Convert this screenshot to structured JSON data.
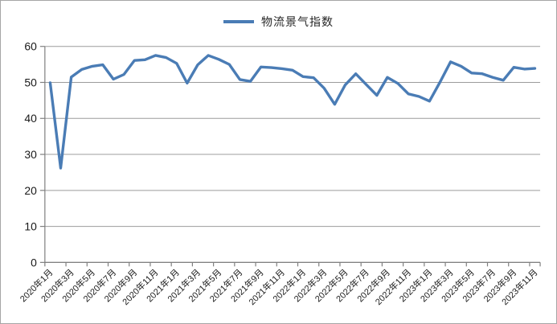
{
  "page": {
    "background": "#ffffff",
    "frame_border_color": "#a6a6a6"
  },
  "legend": {
    "position": "top-center",
    "marker": "line"
  },
  "colors": {
    "series_line": "#4a7cb5",
    "gridline": "#9c9c9c",
    "axis": "#7f7f7f",
    "tick_label": "#1a1a1a"
  },
  "chart_data": {
    "type": "line",
    "title": "",
    "xlabel": "",
    "ylabel": "",
    "ylim": [
      0,
      60
    ],
    "y_ticks": [
      0,
      10,
      20,
      30,
      40,
      50,
      60
    ],
    "grid": "horizontal",
    "legend_position": "top",
    "x_tick_label_interval": 2,
    "x": [
      "2020年1月",
      "2020年2月",
      "2020年3月",
      "2020年4月",
      "2020年5月",
      "2020年6月",
      "2020年7月",
      "2020年8月",
      "2020年9月",
      "2020年10月",
      "2020年11月",
      "2020年12月",
      "2021年1月",
      "2021年2月",
      "2021年3月",
      "2021年4月",
      "2021年5月",
      "2021年6月",
      "2021年7月",
      "2021年8月",
      "2021年9月",
      "2021年10月",
      "2021年11月",
      "2021年12月",
      "2022年1月",
      "2022年2月",
      "2022年3月",
      "2022年4月",
      "2022年5月",
      "2022年6月",
      "2022年7月",
      "2022年8月",
      "2022年9月",
      "2022年10月",
      "2022年11月",
      "2022年12月",
      "2023年1月",
      "2023年2月",
      "2023年3月",
      "2023年4月",
      "2023年5月",
      "2023年6月",
      "2023年7月",
      "2023年8月",
      "2023年9月",
      "2023年10月",
      "2023年11月"
    ],
    "visible_x_tick_labels": [
      "2020年1月",
      "2020年3月",
      "2020年5月",
      "2020年7月",
      "2020年9月",
      "2020年11月",
      "2021年1月",
      "2021年3月",
      "2021年5月",
      "2021年7月",
      "2021年9月",
      "2021年11月",
      "2022年1月",
      "2022年3月",
      "2022年5月",
      "2022年7月",
      "2022年9月",
      "2022年11月",
      "2023年1月",
      "2023年3月",
      "2023年5月",
      "2023年7月",
      "2023年9月",
      "2023年11月"
    ],
    "series": [
      {
        "name": "物流景气指数",
        "color": "#4a7cb5",
        "values": [
          49.9,
          26.2,
          51.5,
          53.6,
          54.5,
          54.9,
          50.9,
          52.2,
          56.1,
          56.3,
          57.5,
          56.9,
          55.3,
          49.8,
          54.9,
          57.5,
          56.4,
          55.0,
          50.8,
          50.3,
          54.3,
          54.1,
          53.8,
          53.4,
          51.6,
          51.3,
          48.4,
          43.9,
          49.3,
          52.4,
          49.4,
          46.4,
          51.4,
          49.7,
          46.8,
          46.1,
          44.8,
          50.1,
          55.7,
          54.5,
          52.6,
          52.4,
          51.4,
          50.6,
          54.2,
          53.7,
          53.9
        ]
      }
    ]
  }
}
